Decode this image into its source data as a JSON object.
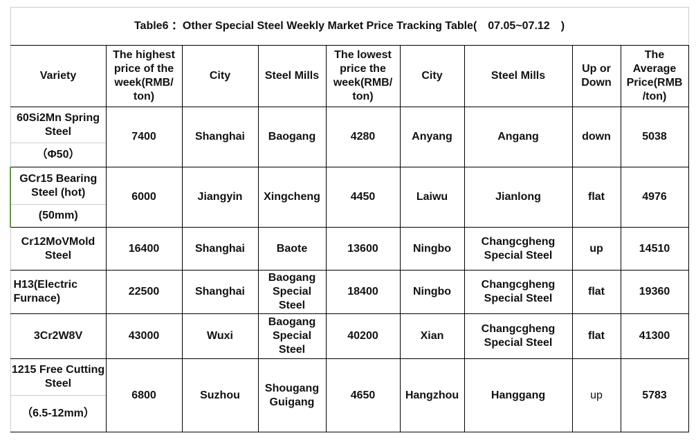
{
  "title": "Table6 ：Other Special Steel Weekly Market Price Tracking Table(　07.05~07.12　)",
  "headers": [
    "Variety",
    "The highest price of the week(RMB/ ton)",
    "City",
    "Steel Mills",
    "The lowest price the week(RMB/ ton)",
    "City",
    "Steel Mills",
    "Up or Down",
    "The Average Price(RMB /ton)"
  ],
  "rows": [
    {
      "variety": "60Si2Mn Spring Steel",
      "spec": "（Φ50）",
      "high": "7400",
      "city1": "Shanghai",
      "mill1": "Baogang",
      "low": "4280",
      "city2": "Anyang",
      "mill2": "Angang",
      "trend": "down",
      "avg": "5038"
    },
    {
      "variety": "GCr15 Bearing Steel (hot)",
      "spec": "(50mm)",
      "high": "6000",
      "city1": "Jiangyin",
      "mill1": "Xingcheng",
      "low": "4450",
      "city2": "Laiwu",
      "mill2": "Jianlong",
      "trend": "flat",
      "avg": "4976"
    },
    {
      "variety": "Cr12MoVMold Steel",
      "high": "16400",
      "city1": "Shanghai",
      "mill1": "Baote",
      "low": "13600",
      "city2": "Ningbo",
      "mill2": "Changcgheng Special Steel",
      "trend": "up",
      "avg": "14510"
    },
    {
      "variety": "H13(Electric Furnace)",
      "high": "22500",
      "city1": "Shanghai",
      "mill1": "Baogang Special Steel",
      "low": "18400",
      "city2": "Ningbo",
      "mill2": "Changcgheng Special Steel",
      "trend": "flat",
      "avg": "19360"
    },
    {
      "variety": "3Cr2W8V",
      "high": "43000",
      "city1": "Wuxi",
      "mill1": "Baogang Special Steel",
      "low": "40200",
      "city2": "Xian",
      "mill2": "Changcgheng Special Steel",
      "trend": "flat",
      "avg": "41300"
    },
    {
      "variety": "1215 Free Cutting Steel",
      "spec": "（6.5-12mm）",
      "high": "6800",
      "city1": "Suzhou",
      "mill1": "Shougang Guigang",
      "low": "4650",
      "city2": "Hangzhou",
      "mill2": "Hanggang",
      "trend": "up",
      "avg": "5783"
    }
  ]
}
